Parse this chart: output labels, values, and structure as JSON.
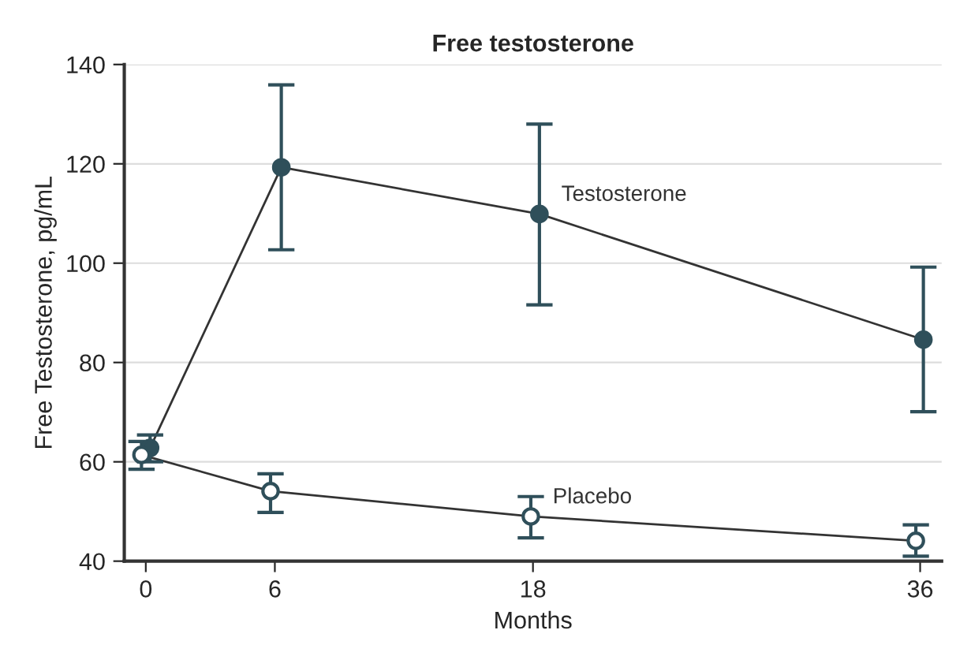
{
  "chart_data": {
    "type": "line",
    "title": "Free testosterone",
    "xlabel": "Months",
    "ylabel": "Free Testosterone, pg/mL",
    "series": [
      {
        "name": "Testosterone",
        "color": "#2f4f5a",
        "x": [
          0.2,
          6.3,
          18.3,
          36.15
        ],
        "values": [
          62.8,
          119.3,
          109.9,
          84.6
        ],
        "errors": [
          [
            60,
            65.4
          ],
          [
            102.7,
            135.9
          ],
          [
            91.6,
            128
          ],
          [
            70.1,
            99.2
          ]
        ]
      },
      {
        "name": "Placebo",
        "color": "#2f4f5a",
        "x": [
          -0.2,
          5.8,
          17.9,
          35.8
        ],
        "values": [
          61.4,
          54.1,
          49.0,
          44.1
        ],
        "errors": [
          [
            58.5,
            64.1
          ],
          [
            49.8,
            57.6
          ],
          [
            44.7,
            53
          ],
          [
            41,
            47.3
          ]
        ]
      }
    ],
    "xlim": [
      -1,
      37
    ],
    "xticks": [
      0,
      6,
      18,
      36
    ],
    "ylim": [
      40,
      140
    ],
    "yticks": [
      40,
      60,
      80,
      100,
      120,
      140
    ],
    "grid": "y",
    "marker": "circle",
    "line_style": "solid",
    "legend": false
  }
}
